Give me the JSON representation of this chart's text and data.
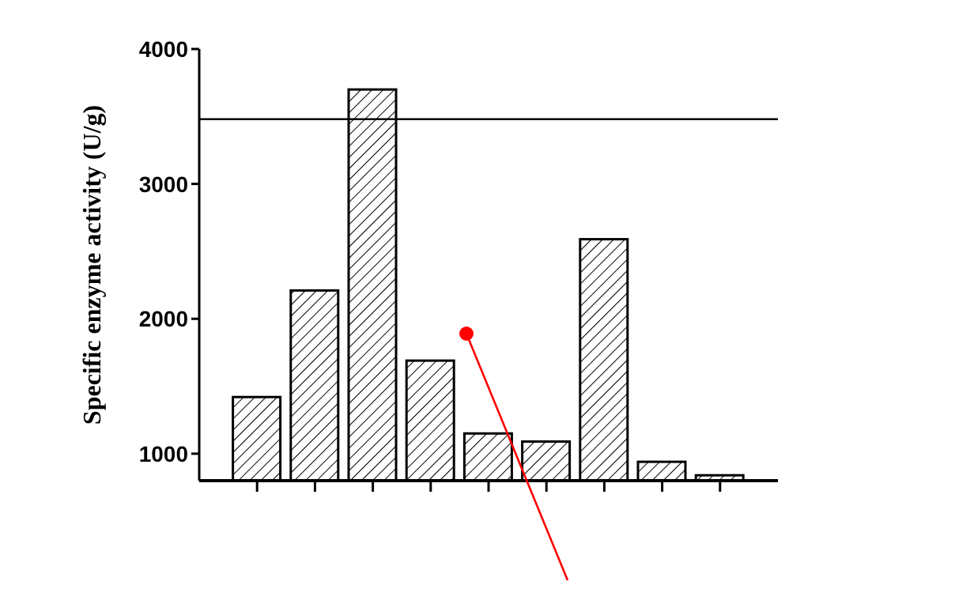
{
  "chart_data": {
    "type": "bar",
    "ylabel": "Specific enzyme activity (U/g)",
    "categories": [
      null,
      null,
      null,
      null,
      null,
      null,
      null,
      null,
      null
    ],
    "values": [
      1420,
      2210,
      3700,
      1690,
      1150,
      1090,
      2590,
      940,
      840
    ],
    "color": "#000000",
    "ylim": [
      800,
      4000
    ],
    "yticks": [
      1000,
      2000,
      3000,
      4000
    ],
    "ref_lines": [
      {
        "axis": "y",
        "value": 3480,
        "color": "#000000"
      }
    ]
  }
}
